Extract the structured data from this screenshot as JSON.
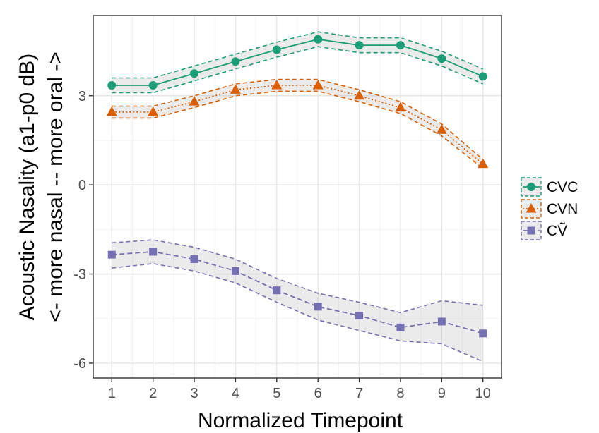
{
  "chart_data": {
    "type": "line",
    "title": "",
    "xlabel": "Normalized Timepoint",
    "ylabel_line1": "Acoustic Nasality (a1-p0 dB)",
    "ylabel_line2": "<- more nasal -- more oral ->",
    "x": [
      1,
      2,
      3,
      4,
      5,
      6,
      7,
      8,
      9,
      10
    ],
    "xlim": [
      0.55,
      10.45
    ],
    "ylim": [
      -6.5,
      5.7
    ],
    "x_ticks": [
      "1",
      "2",
      "3",
      "4",
      "5",
      "6",
      "7",
      "8",
      "9",
      "10"
    ],
    "y_ticks": [
      {
        "value": 3,
        "label": "3"
      },
      {
        "value": 0,
        "label": "0"
      },
      {
        "value": -3,
        "label": "-3"
      },
      {
        "value": -6,
        "label": "-6"
      }
    ],
    "grid": true,
    "legend_position": "right",
    "series": [
      {
        "name": "CVC",
        "color": "#1b9e77",
        "marker": "circle",
        "line_style": "solid",
        "values": [
          3.35,
          3.35,
          3.75,
          4.15,
          4.55,
          4.9,
          4.7,
          4.7,
          4.25,
          3.65
        ],
        "lower": [
          3.1,
          3.1,
          3.5,
          3.9,
          4.3,
          4.65,
          4.45,
          4.45,
          4.0,
          3.4
        ],
        "upper": [
          3.6,
          3.6,
          4.0,
          4.4,
          4.8,
          5.15,
          4.95,
          4.95,
          4.5,
          3.9
        ]
      },
      {
        "name": "CVN",
        "color": "#d95f02",
        "marker": "triangle",
        "line_style": "dotted",
        "values": [
          2.45,
          2.45,
          2.8,
          3.2,
          3.35,
          3.35,
          3.0,
          2.6,
          1.85,
          0.7
        ],
        "lower": [
          2.25,
          2.25,
          2.6,
          3.0,
          3.15,
          3.15,
          2.8,
          2.4,
          1.65,
          0.55
        ],
        "upper": [
          2.65,
          2.65,
          3.0,
          3.4,
          3.55,
          3.55,
          3.2,
          2.8,
          2.05,
          0.85
        ]
      },
      {
        "name": "CṼ",
        "color": "#7570b3",
        "marker": "square",
        "line_style": "dashed",
        "values": [
          -2.35,
          -2.25,
          -2.5,
          -2.9,
          -3.55,
          -4.1,
          -4.4,
          -4.8,
          -4.6,
          -5.0
        ],
        "lower": [
          -2.8,
          -2.65,
          -2.9,
          -3.3,
          -3.95,
          -4.55,
          -4.9,
          -5.25,
          -5.35,
          -5.95
        ],
        "upper": [
          -1.95,
          -1.85,
          -2.1,
          -2.5,
          -3.15,
          -3.65,
          -3.95,
          -4.3,
          -3.9,
          -4.05
        ]
      }
    ]
  }
}
